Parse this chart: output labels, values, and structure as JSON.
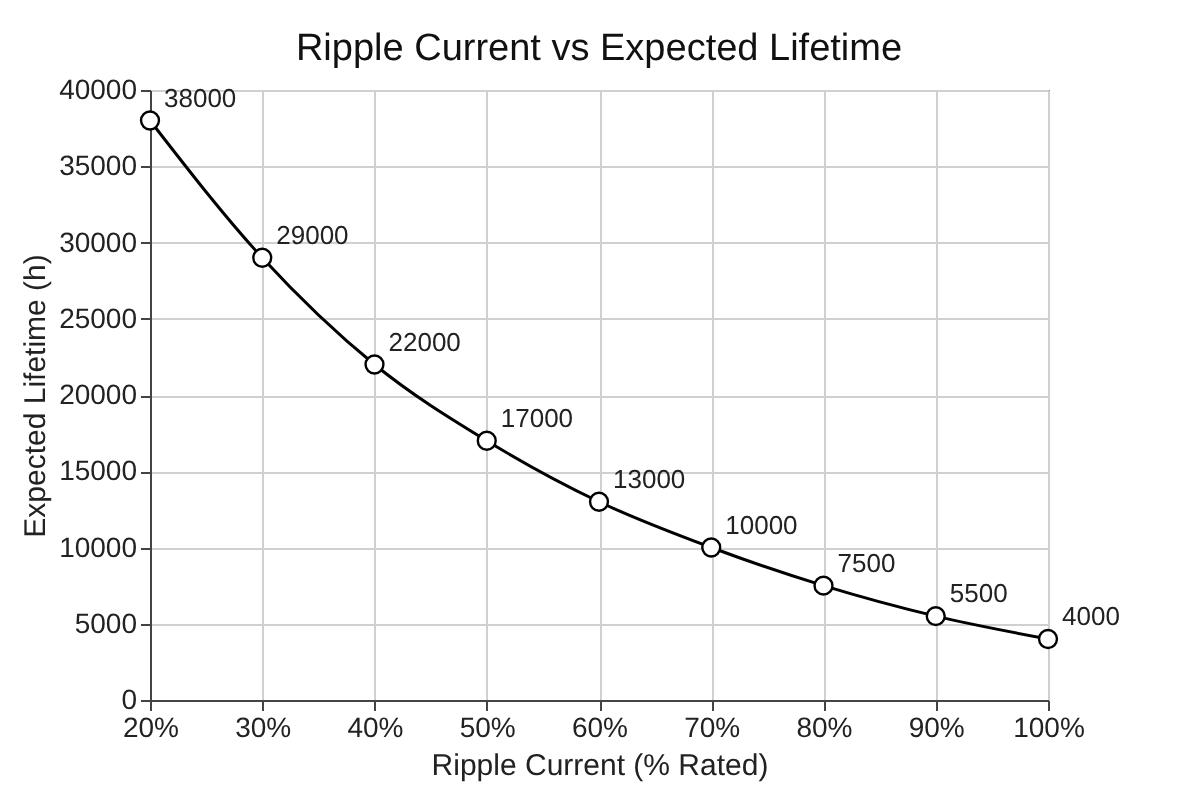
{
  "chart_data": {
    "type": "line",
    "title": "Ripple Current vs Expected Lifetime",
    "xlabel": "Ripple Current (% Rated)",
    "ylabel": "Expected Lifetime (h)",
    "x": [
      20,
      30,
      40,
      50,
      60,
      70,
      80,
      90,
      100
    ],
    "series": [
      {
        "color": "#000000",
        "values": [
          38000,
          29000,
          22000,
          17000,
          13000,
          10000,
          7500,
          5500,
          4000
        ]
      }
    ],
    "xlim": [
      20,
      100
    ],
    "xticks": [
      {
        "value": 20,
        "label": "20%"
      },
      {
        "value": 30,
        "label": "30%"
      },
      {
        "value": 40,
        "label": "40%"
      },
      {
        "value": 50,
        "label": "50%"
      },
      {
        "value": 60,
        "label": "60%"
      },
      {
        "value": 70,
        "label": "70%"
      },
      {
        "value": 80,
        "label": "80%"
      },
      {
        "value": 90,
        "label": "90%"
      },
      {
        "value": 100,
        "label": "100%"
      }
    ],
    "ylim": [
      0,
      40000
    ],
    "yticks": [
      0,
      5000,
      10000,
      15000,
      20000,
      25000,
      30000,
      35000,
      40000
    ],
    "grid": true,
    "marker": "circle",
    "line_style": "solid",
    "data_labels": true
  }
}
